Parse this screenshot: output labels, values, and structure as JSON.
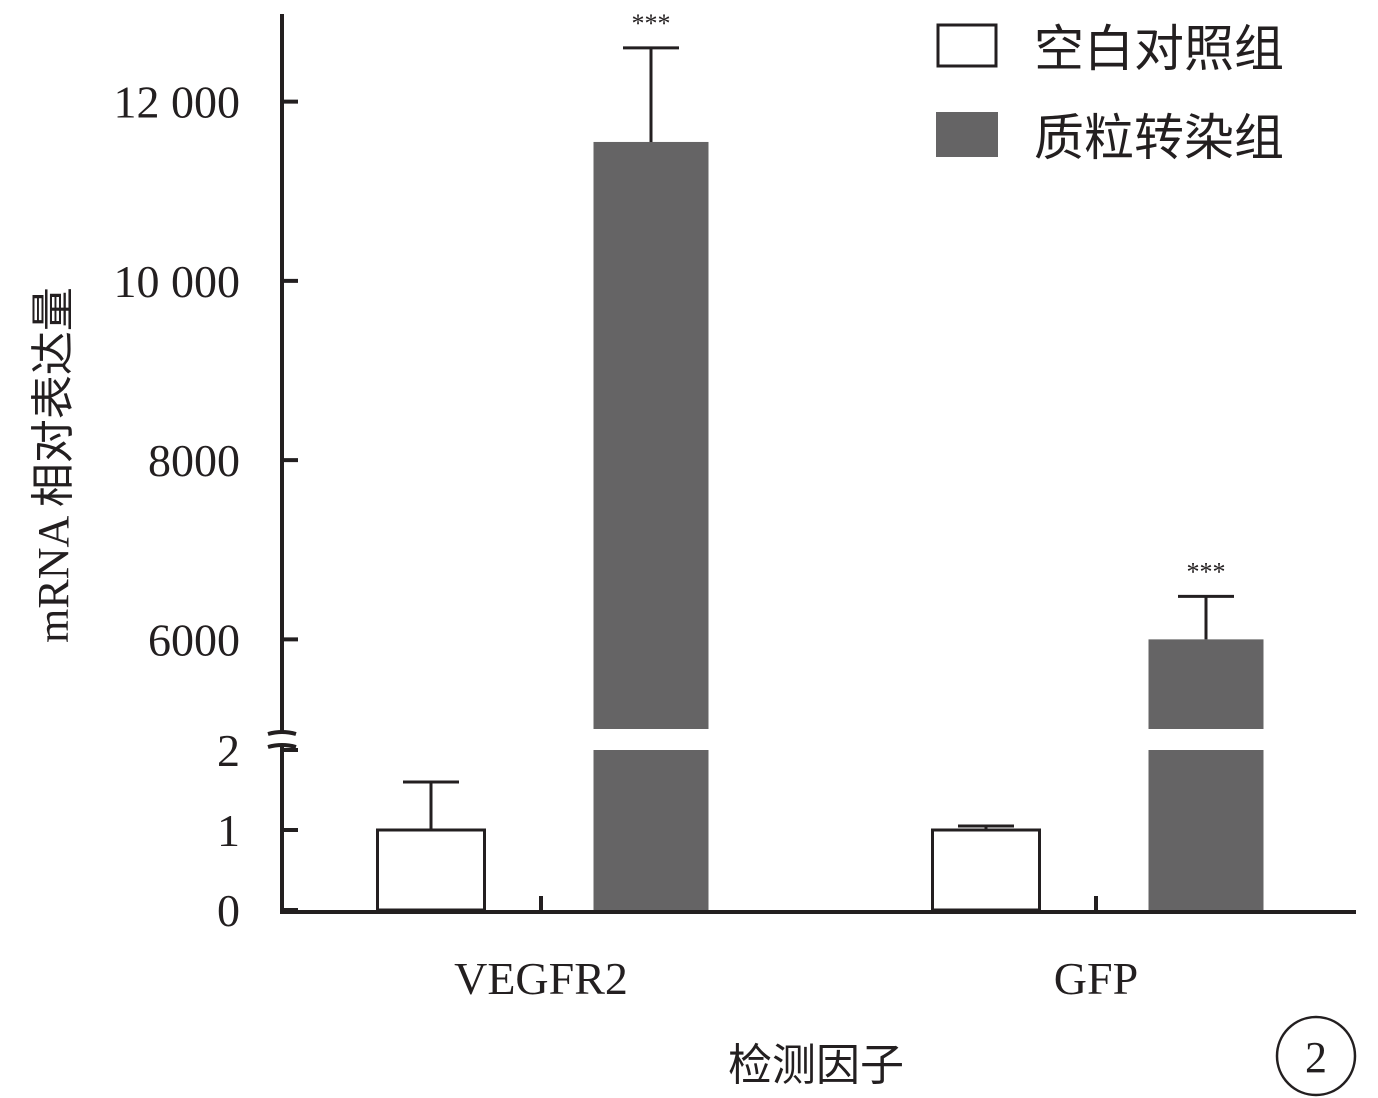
{
  "chart_data": {
    "type": "bar",
    "title": "",
    "xlabel": "检测因子",
    "ylabel": "mRNA 相对表达量",
    "categories": [
      "VEGFR2",
      "GFP"
    ],
    "series": [
      {
        "name": "空白对照组",
        "values": [
          1.0,
          1.0
        ],
        "error": [
          0.6,
          0.05
        ],
        "color": "#ffffff",
        "stroke": "#231f20"
      },
      {
        "name": "质粒转染组",
        "values": [
          11550,
          6000
        ],
        "error": [
          1050,
          480
        ],
        "color": "#656465",
        "stroke": "#656465"
      }
    ],
    "significance": [
      "***",
      "***"
    ],
    "y_axis": {
      "broken": true,
      "lower_segment": {
        "range": [
          0,
          2
        ],
        "ticks": [
          "0",
          "1",
          "2"
        ]
      },
      "upper_segment": {
        "range": [
          5000,
          13000
        ],
        "ticks": [
          "6000",
          "8000",
          "10 000",
          "12 000"
        ]
      }
    },
    "legend_position": "top-right",
    "panel_label": "2",
    "grid": false
  }
}
